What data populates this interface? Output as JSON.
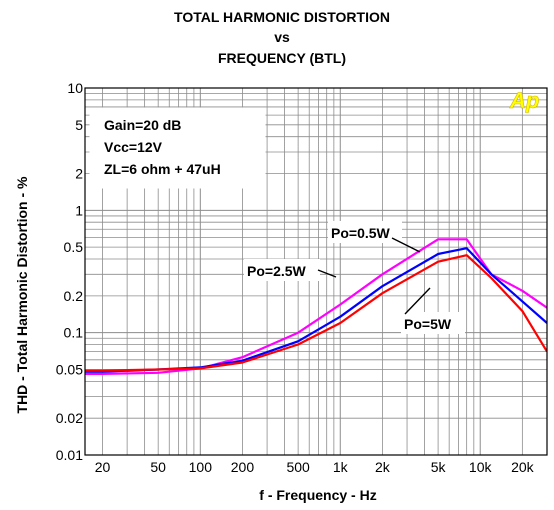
{
  "chart_data": {
    "type": "line",
    "title_lines": [
      "TOTAL HARMONIC DISTORTION",
      "vs",
      "FREQUENCY (BTL)"
    ],
    "xlabel": "f - Frequency - Hz",
    "ylabel": "THD  - Total Harmonic Distortion - %",
    "x_scale": "log",
    "y_scale": "log",
    "xlim": [
      15,
      30000
    ],
    "ylim": [
      0.01,
      10
    ],
    "x_ticks": [
      {
        "value": 20,
        "label": "20"
      },
      {
        "value": 50,
        "label": "50"
      },
      {
        "value": 100,
        "label": "100"
      },
      {
        "value": 200,
        "label": "200"
      },
      {
        "value": 500,
        "label": "500"
      },
      {
        "value": 1000,
        "label": "1k"
      },
      {
        "value": 2000,
        "label": "2k"
      },
      {
        "value": 5000,
        "label": "5k"
      },
      {
        "value": 10000,
        "label": "10k"
      },
      {
        "value": 20000,
        "label": "20k"
      }
    ],
    "y_ticks": [
      {
        "value": 10,
        "label": "10"
      },
      {
        "value": 5,
        "label": "5"
      },
      {
        "value": 2,
        "label": "2"
      },
      {
        "value": 1,
        "label": "1"
      },
      {
        "value": 0.5,
        "label": "0.5"
      },
      {
        "value": 0.2,
        "label": "0.2"
      },
      {
        "value": 0.1,
        "label": "0.1"
      },
      {
        "value": 0.05,
        "label": "0.05"
      },
      {
        "value": 0.02,
        "label": "0.02"
      },
      {
        "value": 0.01,
        "label": "0.01"
      }
    ],
    "grid": true,
    "conditions": [
      "Gain=20 dB",
      "Vcc=12V",
      "ZL=6 ohm + 47uH"
    ],
    "logo_text": "Ap",
    "series": [
      {
        "name": "Po=0.5W",
        "color": "#ff00ff",
        "x": [
          15,
          20,
          50,
          100,
          200,
          500,
          1000,
          2000,
          5000,
          8000,
          12000,
          20000,
          30000
        ],
        "y": [
          0.046,
          0.046,
          0.047,
          0.051,
          0.063,
          0.1,
          0.17,
          0.3,
          0.58,
          0.58,
          0.3,
          0.22,
          0.16
        ]
      },
      {
        "name": "Po=2.5W",
        "color": "#0000ff",
        "x": [
          15,
          20,
          50,
          100,
          200,
          500,
          1000,
          2000,
          5000,
          8000,
          12000,
          20000,
          30000
        ],
        "y": [
          0.048,
          0.048,
          0.05,
          0.052,
          0.059,
          0.085,
          0.135,
          0.24,
          0.44,
          0.49,
          0.3,
          0.18,
          0.12
        ]
      },
      {
        "name": "Po=5W",
        "color": "#ff0000",
        "x": [
          15,
          20,
          50,
          100,
          200,
          500,
          1000,
          2000,
          5000,
          8000,
          12000,
          20000,
          30000
        ],
        "y": [
          0.049,
          0.049,
          0.05,
          0.051,
          0.057,
          0.08,
          0.12,
          0.21,
          0.38,
          0.43,
          0.28,
          0.15,
          0.07
        ]
      }
    ]
  }
}
